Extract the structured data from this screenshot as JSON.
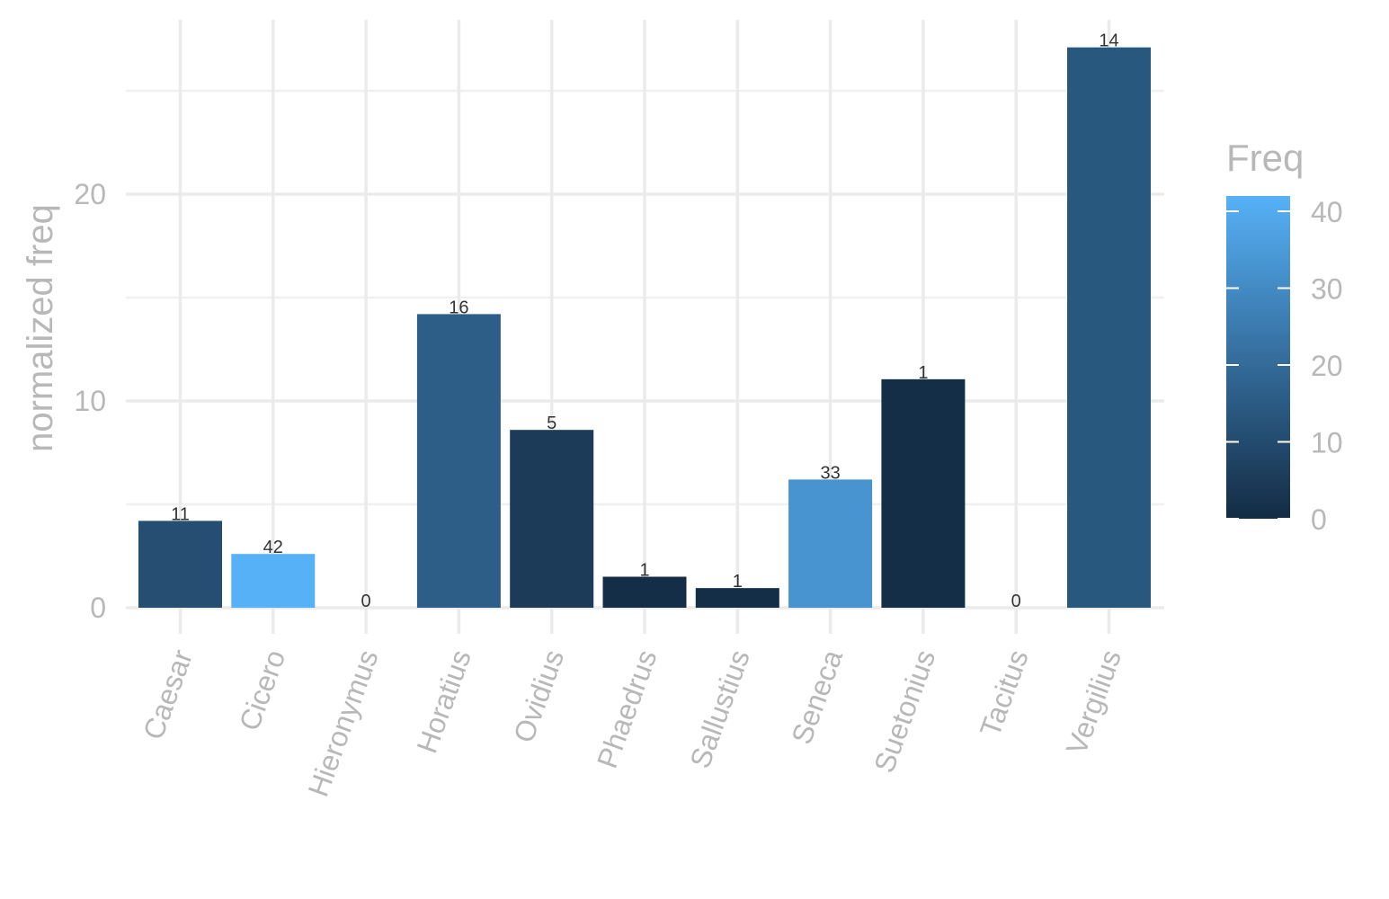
{
  "chart_data": {
    "type": "bar",
    "title": "",
    "xlabel": "",
    "ylabel": "normalized freq",
    "categories": [
      "Caesar",
      "Cicero",
      "Hieronymus",
      "Horatius",
      "Ovidius",
      "Phaedrus",
      "Sallustius",
      "Seneca",
      "Suetonius",
      "Tacitus",
      "Vergilius"
    ],
    "values": [
      4.2,
      2.6,
      0,
      14.2,
      8.6,
      1.5,
      0.95,
      6.2,
      11.05,
      0,
      27.1
    ],
    "fill_values": [
      11,
      42,
      0,
      16,
      5,
      1,
      1,
      33,
      1,
      0,
      14
    ],
    "bar_labels": [
      "11",
      "42",
      "0",
      "16",
      "5",
      "1",
      "1",
      "33",
      "1",
      "0",
      "14"
    ],
    "ylim": [
      0,
      28
    ],
    "y_ticks": [
      0,
      10,
      20
    ],
    "y_tick_labels": [
      "0",
      "10",
      "20"
    ],
    "grid": true,
    "legend": {
      "title": "Freq",
      "type": "colorbar",
      "position": "right",
      "range": [
        0,
        42
      ],
      "ticks": [
        0,
        10,
        20,
        30,
        40
      ],
      "tick_labels": [
        "0",
        "10",
        "20",
        "30",
        "40"
      ],
      "color_low": "#132b43",
      "color_high": "#56b1f7"
    }
  }
}
